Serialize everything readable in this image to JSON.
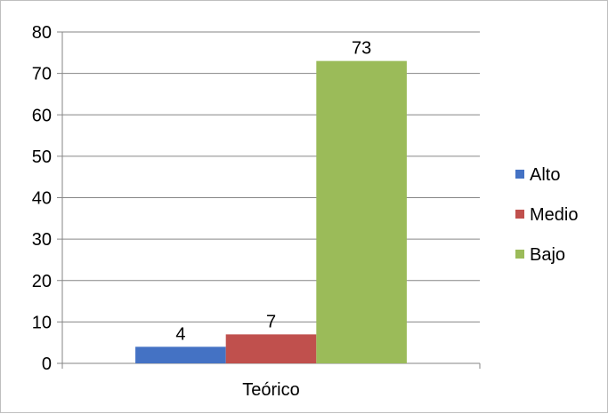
{
  "chart_data": {
    "type": "bar",
    "categories": [
      "Teórico"
    ],
    "series": [
      {
        "name": "Alto",
        "values": [
          4
        ],
        "color": "#4472c4"
      },
      {
        "name": "Medio",
        "values": [
          7
        ],
        "color": "#c0504d"
      },
      {
        "name": "Bajo",
        "values": [
          73
        ],
        "color": "#9bbb59"
      }
    ],
    "data_labels": [
      "4",
      "7",
      "73"
    ],
    "ylim": [
      0,
      80
    ],
    "yticks": [
      0,
      10,
      20,
      30,
      40,
      50,
      60,
      70,
      80
    ],
    "grid": true,
    "legend_position": "right"
  }
}
